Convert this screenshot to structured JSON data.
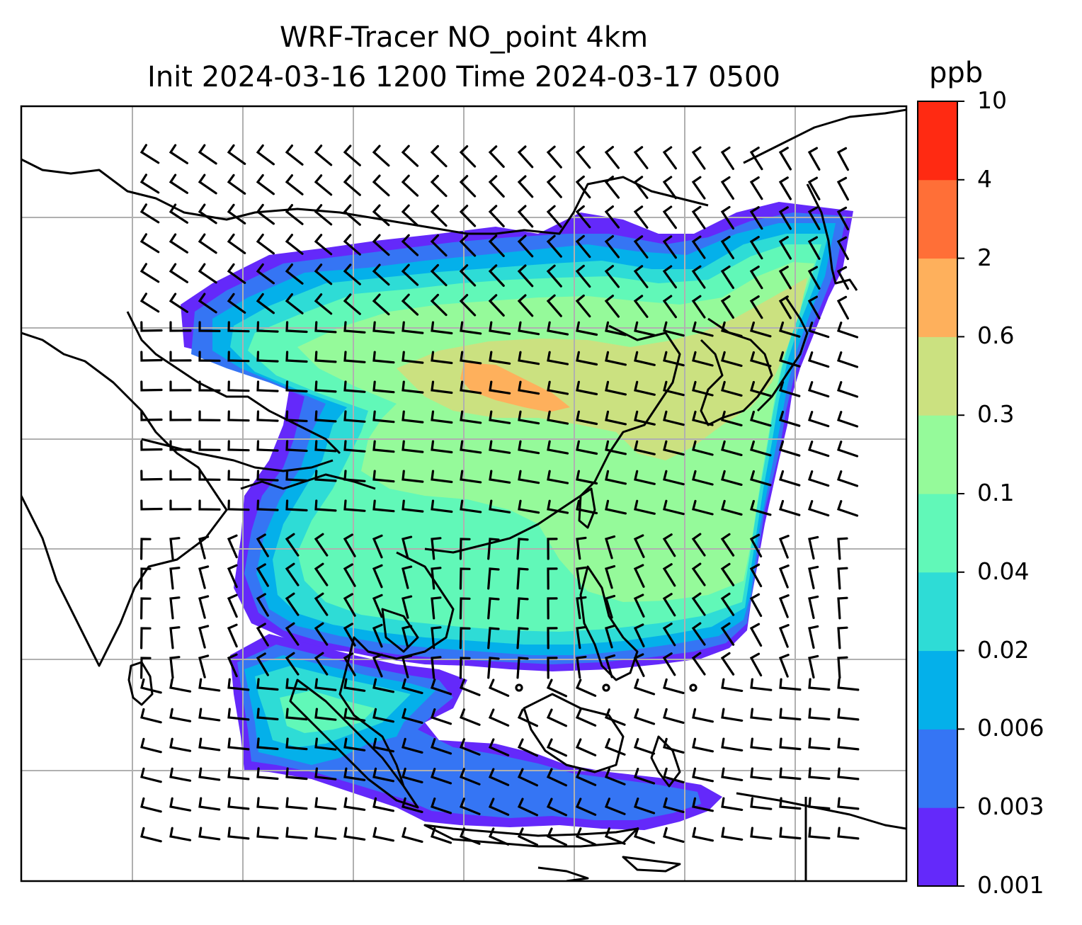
{
  "title": {
    "line1": "WRF-Tracer NO_point 4km",
    "line2": "Init 2024-03-16 1200 Time 2024-03-17 0500"
  },
  "colorbar": {
    "unit": "ppb",
    "ticks": [
      "0.001",
      "0.003",
      "0.006",
      "0.02",
      "0.04",
      "0.1",
      "0.3",
      "0.6",
      "2",
      "4",
      "10"
    ],
    "colors": [
      "#6429fa",
      "#3575f4",
      "#04b0ea",
      "#2edcd6",
      "#61f8b8",
      "#95fa9a",
      "#cbe180",
      "#feb05c",
      "#ff6f37",
      "#ff2a12"
    ]
  },
  "map": {
    "gridlines": true,
    "coastline_color": "#000000",
    "gridline_color": "#b0b0b0",
    "barb_color": "#000000"
  }
}
